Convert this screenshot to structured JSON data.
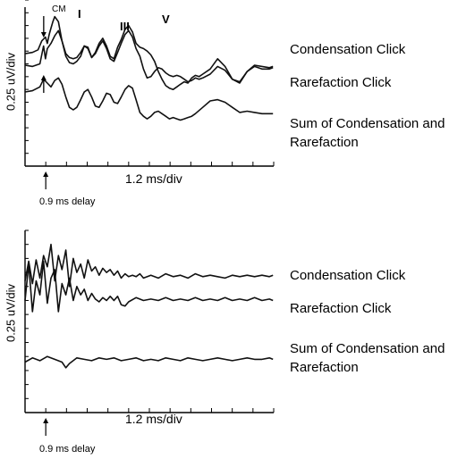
{
  "chart_data": [
    {
      "type": "line",
      "ylabel": "0.25 uV/div",
      "xlabel": "1.2 ms/div",
      "delay_label": "0.9 ms delay",
      "xlim": [
        0,
        14.4
      ],
      "annotations": [
        {
          "text": "CM",
          "x": 1.08
        },
        {
          "text": "I",
          "x": 1.72
        },
        {
          "text": "III",
          "x": 3.86
        },
        {
          "text": "V",
          "x": 5.7
        }
      ],
      "series": [
        {
          "name": "Condensation Click",
          "x": [
            0,
            0.43,
            0.75,
            0.97,
            1.18,
            1.29,
            1.4,
            1.5,
            1.61,
            1.72,
            1.93,
            2.14,
            2.36,
            2.57,
            2.79,
            3.0,
            3.22,
            3.43,
            3.64,
            3.86,
            4.07,
            4.29,
            4.5,
            4.72,
            4.93,
            5.15,
            5.36,
            5.57,
            5.79,
            6.0,
            6.22,
            6.43,
            6.65,
            6.86,
            7.07,
            7.29,
            7.5,
            7.72,
            7.93,
            8.15,
            8.36,
            8.58,
            8.79,
            9.0,
            9.22,
            9.43,
            9.65,
            9.86,
            10.08,
            10.29,
            10.72,
            11.15,
            11.58,
            12.0,
            12.43,
            12.86,
            13.29,
            13.72,
            14.15,
            14.36
          ],
          "y": [
            8.8,
            8.9,
            9.1,
            9.8,
            10.1,
            9.6,
            10.3,
            10.8,
            11.3,
            11.7,
            11.3,
            9.8,
            8.8,
            8.5,
            8.4,
            8.5,
            8.9,
            9.4,
            9.3,
            8.5,
            8.9,
            9.6,
            10.0,
            9.4,
            8.6,
            8.4,
            9.3,
            9.9,
            10.7,
            11.0,
            10.5,
            9.6,
            9.3,
            9.2,
            9.0,
            8.7,
            8.2,
            7.4,
            6.8,
            6.3,
            6.1,
            6.0,
            6.2,
            6.4,
            6.6,
            6.5,
            6.9,
            7.1,
            7.0,
            7.2,
            7.6,
            8.4,
            7.8,
            6.8,
            6.5,
            7.4,
            7.9,
            7.8,
            7.7,
            7.8
          ]
        },
        {
          "name": "Rarefaction Click",
          "x": [
            0,
            0.43,
            0.86,
            1.07,
            1.18,
            1.29,
            1.5,
            1.72,
            1.93,
            2.14,
            2.36,
            2.57,
            2.79,
            3.0,
            3.22,
            3.43,
            3.64,
            3.86,
            4.07,
            4.29,
            4.5,
            4.72,
            4.93,
            5.15,
            5.36,
            5.57,
            5.79,
            6.0,
            6.22,
            6.43,
            6.65,
            6.86,
            7.07,
            7.29,
            7.5,
            7.72,
            7.93,
            8.15,
            8.36,
            8.58,
            8.79,
            9.0,
            9.22,
            9.43,
            9.65,
            9.86,
            10.08,
            10.29,
            10.72,
            11.15,
            11.58,
            12.0,
            12.43,
            12.86,
            13.29,
            13.72,
            14.15,
            14.36
          ],
          "y": [
            7.9,
            7.8,
            8.0,
            9.4,
            8.4,
            9.2,
            9.6,
            10.2,
            10.6,
            9.8,
            8.6,
            8.1,
            8.0,
            8.2,
            8.6,
            9.4,
            9.2,
            8.5,
            8.8,
            9.4,
            9.8,
            9.2,
            8.4,
            8.2,
            8.9,
            9.6,
            10.3,
            10.6,
            10.1,
            9.2,
            8.6,
            7.6,
            6.9,
            7.0,
            7.4,
            7.7,
            7.6,
            7.3,
            7.1,
            7.0,
            7.1,
            7.0,
            6.8,
            6.6,
            6.7,
            6.9,
            6.8,
            6.9,
            7.2,
            7.8,
            7.5,
            6.8,
            6.6,
            7.4,
            7.8,
            7.6,
            7.6,
            7.7
          ]
        },
        {
          "name": "Sum of Condensation and Rarefaction",
          "x": [
            0,
            0.43,
            0.86,
            1.07,
            1.29,
            1.5,
            1.72,
            1.93,
            2.14,
            2.36,
            2.57,
            2.79,
            3.0,
            3.22,
            3.43,
            3.64,
            3.86,
            4.07,
            4.29,
            4.5,
            4.72,
            4.93,
            5.15,
            5.36,
            5.57,
            5.79,
            6.0,
            6.22,
            6.43,
            6.65,
            6.86,
            7.07,
            7.29,
            7.5,
            7.72,
            7.93,
            8.15,
            8.36,
            8.58,
            8.79,
            9.0,
            9.22,
            9.43,
            9.65,
            9.86,
            10.29,
            10.72,
            11.15,
            11.58,
            12.0,
            12.43,
            12.86,
            13.29,
            13.72,
            14.15,
            14.36
          ],
          "y": [
            5.8,
            5.9,
            6.2,
            6.8,
            6.5,
            6.2,
            6.7,
            6.9,
            6.4,
            5.4,
            4.6,
            4.4,
            4.6,
            5.2,
            5.8,
            6.0,
            5.4,
            4.7,
            4.6,
            5.1,
            5.7,
            5.6,
            5.0,
            4.9,
            5.4,
            6.0,
            6.3,
            6.1,
            5.2,
            4.2,
            3.9,
            3.7,
            3.9,
            4.2,
            4.3,
            4.1,
            3.9,
            3.7,
            3.8,
            3.7,
            3.6,
            3.7,
            3.8,
            3.9,
            4.1,
            4.6,
            5.1,
            5.2,
            5.0,
            4.6,
            4.2,
            4.3,
            4.2,
            4.1,
            4.1,
            4.1
          ]
        }
      ]
    },
    {
      "type": "line",
      "ylabel": "0.25 uV/div",
      "xlabel": "1.2 ms/div",
      "delay_label": "0.9 ms delay",
      "xlim": [
        0,
        14.4
      ],
      "series": [
        {
          "name": "Condensation Click",
          "x": [
            0,
            0.21,
            0.43,
            0.64,
            0.86,
            1.07,
            1.29,
            1.5,
            1.72,
            1.93,
            2.14,
            2.36,
            2.57,
            2.79,
            3.0,
            3.22,
            3.43,
            3.64,
            3.86,
            4.07,
            4.29,
            4.5,
            4.72,
            4.93,
            5.15,
            5.36,
            5.57,
            5.79,
            6.0,
            6.22,
            6.43,
            6.65,
            6.86,
            7.29,
            7.72,
            8.15,
            8.58,
            9.0,
            9.43,
            9.86,
            10.29,
            10.72,
            11.15,
            11.58,
            12.0,
            12.43,
            12.86,
            13.29,
            13.72,
            14.15,
            14.36
          ],
          "y": [
            9.4,
            10.8,
            9.2,
            10.9,
            9.6,
            11.2,
            10.4,
            12.0,
            9.4,
            11.2,
            10.2,
            11.6,
            9.0,
            11.0,
            10.0,
            10.6,
            9.6,
            10.9,
            10.1,
            10.4,
            9.8,
            10.3,
            10.0,
            10.2,
            9.8,
            10.1,
            9.6,
            9.9,
            9.7,
            9.8,
            9.7,
            9.9,
            9.6,
            9.8,
            9.6,
            9.9,
            9.7,
            9.8,
            9.6,
            9.9,
            9.7,
            9.8,
            9.7,
            9.6,
            9.8,
            9.7,
            9.8,
            9.7,
            9.8,
            9.7,
            9.8
          ]
        },
        {
          "name": "Rarefaction Click",
          "x": [
            0,
            0.21,
            0.43,
            0.64,
            0.86,
            1.07,
            1.29,
            1.5,
            1.72,
            1.93,
            2.14,
            2.36,
            2.57,
            2.79,
            3.0,
            3.22,
            3.43,
            3.64,
            3.86,
            4.07,
            4.29,
            4.5,
            4.72,
            4.93,
            5.15,
            5.36,
            5.57,
            5.79,
            6.0,
            6.43,
            6.86,
            7.29,
            7.72,
            8.15,
            8.58,
            9.0,
            9.43,
            9.86,
            10.29,
            10.72,
            11.15,
            11.58,
            12.0,
            12.43,
            12.86,
            13.29,
            13.72,
            14.15,
            14.36
          ],
          "y": [
            8.0,
            10.6,
            7.2,
            9.4,
            8.4,
            10.8,
            7.8,
            9.6,
            10.2,
            7.2,
            9.2,
            8.4,
            9.6,
            8.0,
            9.0,
            8.4,
            8.8,
            8.0,
            8.5,
            8.1,
            7.9,
            8.2,
            8.0,
            8.3,
            8.0,
            8.3,
            7.7,
            7.6,
            7.9,
            8.2,
            8.0,
            8.1,
            8.0,
            8.2,
            8.0,
            8.1,
            8.0,
            8.2,
            8.0,
            8.1,
            8.0,
            8.2,
            8.0,
            8.1,
            8.0,
            8.2,
            8.0,
            8.1,
            8.0
          ]
        },
        {
          "name": "Sum of Condensation and Rarefaction",
          "x": [
            0,
            0.43,
            0.86,
            1.29,
            1.72,
            2.14,
            2.36,
            2.57,
            3.0,
            3.43,
            3.86,
            4.29,
            4.72,
            5.15,
            5.57,
            6.0,
            6.43,
            6.86,
            7.29,
            7.72,
            8.15,
            8.58,
            9.0,
            9.43,
            9.86,
            10.29,
            10.72,
            11.15,
            11.58,
            12.0,
            12.43,
            12.86,
            13.29,
            13.72,
            14.15,
            14.36
          ],
          "y": [
            3.6,
            3.9,
            3.7,
            4.0,
            3.8,
            3.6,
            3.2,
            3.5,
            3.9,
            3.8,
            3.7,
            3.9,
            3.8,
            3.9,
            3.7,
            3.8,
            3.9,
            3.7,
            3.8,
            3.7,
            3.9,
            3.8,
            3.7,
            3.9,
            3.8,
            3.7,
            3.8,
            3.9,
            3.8,
            3.7,
            3.8,
            3.9,
            3.8,
            3.8,
            3.9,
            3.8
          ]
        }
      ]
    }
  ]
}
